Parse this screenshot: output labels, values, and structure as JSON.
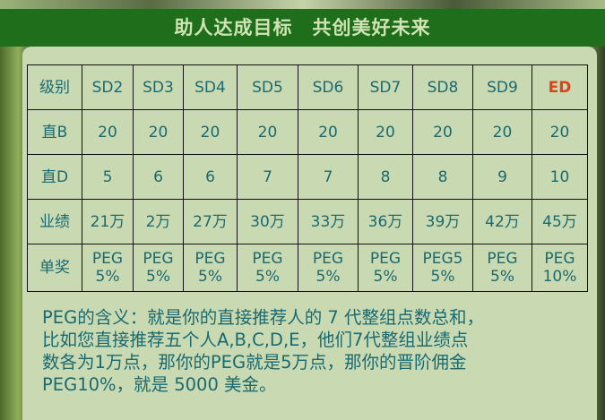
{
  "banner": {
    "title": "助人达成目标　共创美好未来"
  },
  "table": {
    "rows": [
      {
        "label": "级别",
        "cells": [
          "SD2",
          "SD3",
          "SD4",
          "SD5",
          "SD6",
          "SD7",
          "SD8",
          "SD9",
          "ED"
        ]
      },
      {
        "label": "直B",
        "cells": [
          "20",
          "20",
          "20",
          "20",
          "20",
          "20",
          "20",
          "20",
          "20"
        ]
      },
      {
        "label": "直D",
        "cells": [
          "5",
          "6",
          "6",
          "7",
          "7",
          "8",
          "8",
          "9",
          "10"
        ]
      },
      {
        "label": "业绩",
        "cells": [
          "21万",
          "2万",
          "27万",
          "30万",
          "33万",
          "36万",
          "39万",
          "42万",
          "45万"
        ]
      },
      {
        "label": "单奖",
        "cells": [
          [
            "PEG",
            "5%"
          ],
          [
            "PEG",
            "5%"
          ],
          [
            "PEG",
            "5%"
          ],
          [
            "PEG",
            "5%"
          ],
          [
            "PEG",
            "5%"
          ],
          [
            "PEG",
            "5%"
          ],
          [
            "PEG5",
            "5%"
          ],
          [
            "PEG",
            "5%"
          ],
          [
            "PEG",
            "10%"
          ]
        ]
      }
    ]
  },
  "description": {
    "lines": [
      "PEG的含义：就是你的直接推荐人的 7 代整组点数总和，",
      "比如您直接推荐五个人A,B,C,D,E，他们7代整组业绩点",
      "数各为1万点，那你的PEG就是5万点，那你的晋阶佣金",
      "PEG10%，就是 5000 美金。"
    ]
  },
  "colors": {
    "banner": "#1f6e1b",
    "text": "#1a6a70",
    "highlight": "#e2401b",
    "panel": "#c9dab3"
  }
}
